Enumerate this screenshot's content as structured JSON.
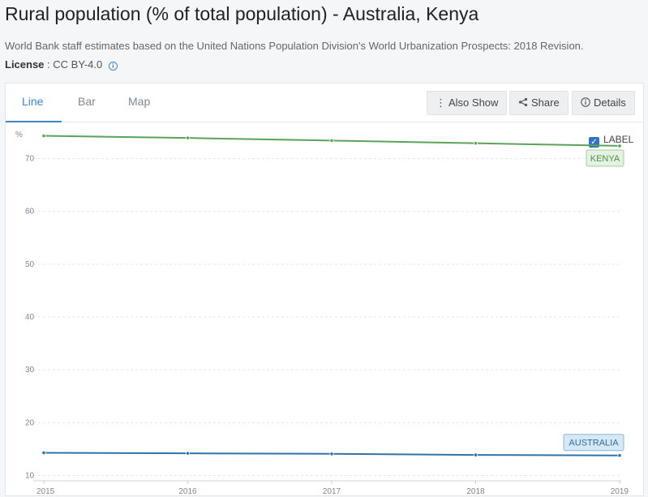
{
  "header": {
    "title": "Rural population (% of total population) - Australia, Kenya",
    "source": "World Bank staff estimates based on the United Nations Population Division's World Urbanization Prospects: 2018 Revision.",
    "license_label": "License",
    "license_value": ": CC BY-4.0",
    "info_glyph": "i"
  },
  "tabs": [
    {
      "label": "Line",
      "active": true
    },
    {
      "label": "Bar",
      "active": false
    },
    {
      "label": "Map",
      "active": false
    }
  ],
  "toolbar": {
    "also_show": "Also Show",
    "share": "Share",
    "details": "Details"
  },
  "label_toggle": {
    "text": "LABEL",
    "checked": true
  },
  "colors": {
    "kenya": "#5aa35a",
    "australia": "#2f73a8",
    "accent": "#3a86c8"
  },
  "chart_data": {
    "type": "line",
    "ylabel": "%",
    "x": [
      2015,
      2016,
      2017,
      2018,
      2019
    ],
    "ylim": [
      9,
      75
    ],
    "yticks": [
      10,
      20,
      30,
      40,
      50,
      60,
      70
    ],
    "grid": true,
    "series": [
      {
        "name": "KENYA",
        "values": [
          74.3,
          73.9,
          73.4,
          72.9,
          72.4
        ]
      },
      {
        "name": "AUSTRALIA",
        "values": [
          14.3,
          14.2,
          14.1,
          13.9,
          13.8
        ]
      }
    ]
  }
}
